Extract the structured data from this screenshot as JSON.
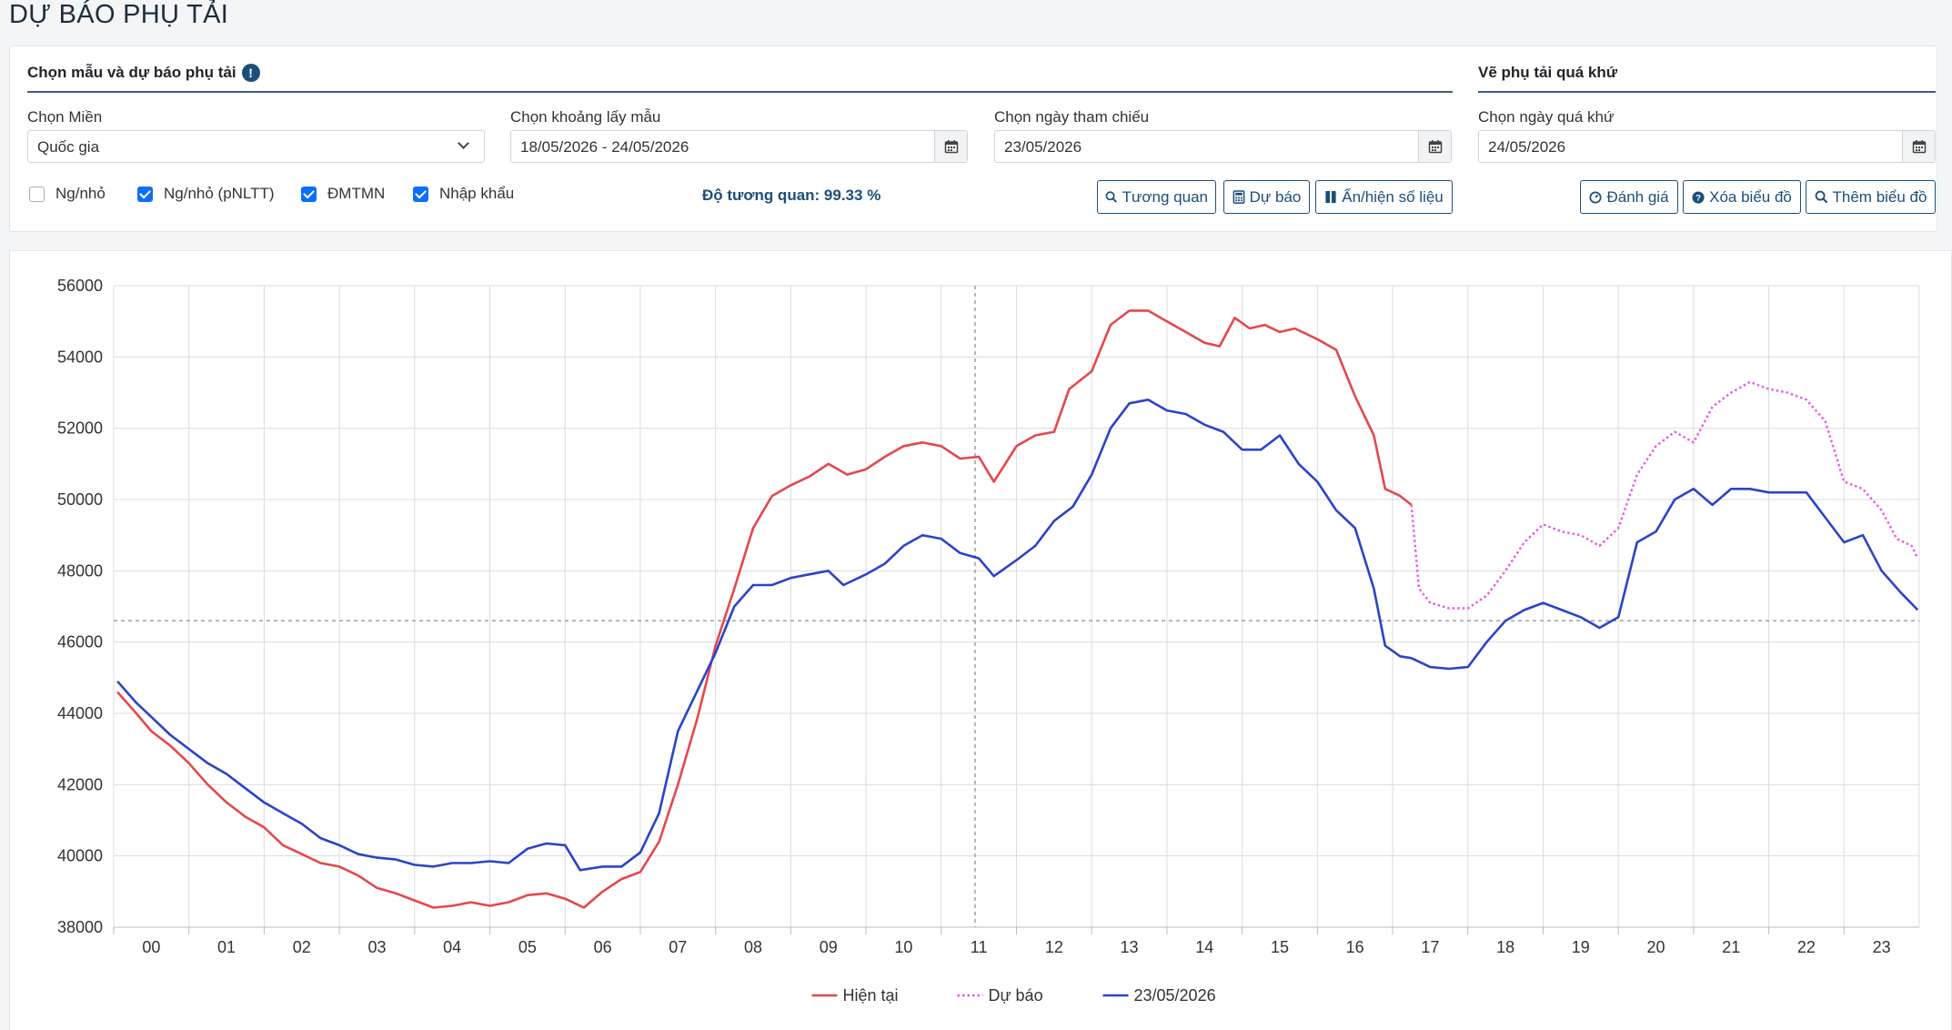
{
  "page": {
    "title": "DỰ BÁO PHỤ TẢI"
  },
  "forecast_section": {
    "title": "Chọn mẫu và dự báo phụ tải",
    "info_icon": "info-circle-icon",
    "region": {
      "label": "Chọn Miền",
      "value": "Quốc gia"
    },
    "sample_range": {
      "label": "Chọn khoảng lấy mẫu",
      "value": "18/05/2026 - 24/05/2026"
    },
    "ref_date": {
      "label": "Chọn ngày tham chiếu",
      "value": "23/05/2026"
    },
    "checkboxes": [
      {
        "label": "Ng/nhỏ",
        "checked": false
      },
      {
        "label": "Ng/nhỏ (pNLTT)",
        "checked": true
      },
      {
        "label": "ĐMTMN",
        "checked": true
      },
      {
        "label": "Nhập khẩu",
        "checked": true
      }
    ],
    "correlation": "Độ tương quan: 99.33 %",
    "buttons": {
      "correlate": "Tương quan",
      "forecast": "Dự báo",
      "toggle_data": "Ẩn/hiện số liệu"
    }
  },
  "history_section": {
    "title": "Vẽ phụ tải quá khứ",
    "past_date": {
      "label": "Chọn ngày quá khứ",
      "value": "24/05/2026"
    },
    "buttons": {
      "evaluate": "Đánh giá",
      "clear_chart": "Xóa biểu đồ",
      "add_chart": "Thêm biểu đồ"
    }
  },
  "chart_data": {
    "type": "line",
    "ylim": [
      38000,
      56000
    ],
    "yticks": [
      38000,
      40000,
      42000,
      44000,
      46000,
      48000,
      50000,
      52000,
      54000,
      56000
    ],
    "ytick_labels": [
      "38000",
      "40000",
      "42000",
      "44000",
      "46000",
      "48000",
      "50000",
      "52000",
      "54000",
      "56000"
    ],
    "xlim": [
      -0.5,
      23.5
    ],
    "xtick_labels": [
      "00",
      "01",
      "02",
      "03",
      "04",
      "05",
      "06",
      "07",
      "08",
      "09",
      "10",
      "11",
      "12",
      "13",
      "14",
      "15",
      "16",
      "17",
      "18",
      "19",
      "20",
      "21",
      "22",
      "23"
    ],
    "crosshair": {
      "x": 10.95,
      "y": 46600
    },
    "legend_position": "bottom",
    "series": [
      {
        "name": "Hiện tại",
        "color": "#e4484b",
        "style": "solid",
        "points": [
          [
            -0.45,
            44600
          ],
          [
            -0.2,
            44000
          ],
          [
            0.0,
            43500
          ],
          [
            0.25,
            43100
          ],
          [
            0.5,
            42600
          ],
          [
            0.75,
            42000
          ],
          [
            1.0,
            41500
          ],
          [
            1.25,
            41100
          ],
          [
            1.5,
            40800
          ],
          [
            1.75,
            40300
          ],
          [
            2.0,
            40050
          ],
          [
            2.25,
            39800
          ],
          [
            2.5,
            39700
          ],
          [
            2.75,
            39450
          ],
          [
            3.0,
            39100
          ],
          [
            3.25,
            38950
          ],
          [
            3.5,
            38750
          ],
          [
            3.75,
            38550
          ],
          [
            4.0,
            38600
          ],
          [
            4.25,
            38700
          ],
          [
            4.5,
            38600
          ],
          [
            4.75,
            38700
          ],
          [
            5.0,
            38900
          ],
          [
            5.25,
            38950
          ],
          [
            5.5,
            38800
          ],
          [
            5.75,
            38550
          ],
          [
            6.0,
            39000
          ],
          [
            6.25,
            39350
          ],
          [
            6.5,
            39550
          ],
          [
            6.75,
            40400
          ],
          [
            7.0,
            42000
          ],
          [
            7.25,
            43800
          ],
          [
            7.5,
            45900
          ],
          [
            7.75,
            47500
          ],
          [
            8.0,
            49200
          ],
          [
            8.25,
            50100
          ],
          [
            8.5,
            50400
          ],
          [
            8.75,
            50650
          ],
          [
            9.0,
            51000
          ],
          [
            9.25,
            50700
          ],
          [
            9.5,
            50850
          ],
          [
            9.75,
            51200
          ],
          [
            10.0,
            51500
          ],
          [
            10.25,
            51600
          ],
          [
            10.5,
            51500
          ],
          [
            10.75,
            51150
          ],
          [
            11.0,
            51200
          ],
          [
            11.2,
            50500
          ],
          [
            11.5,
            51500
          ],
          [
            11.75,
            51800
          ],
          [
            12.0,
            51900
          ],
          [
            12.2,
            53100
          ],
          [
            12.5,
            53600
          ],
          [
            12.75,
            54900
          ],
          [
            13.0,
            55300
          ],
          [
            13.25,
            55300
          ],
          [
            13.5,
            55000
          ],
          [
            13.75,
            54700
          ],
          [
            14.0,
            54400
          ],
          [
            14.2,
            54300
          ],
          [
            14.4,
            55100
          ],
          [
            14.6,
            54800
          ],
          [
            14.8,
            54900
          ],
          [
            15.0,
            54700
          ],
          [
            15.2,
            54800
          ],
          [
            15.5,
            54500
          ],
          [
            15.75,
            54200
          ],
          [
            16.0,
            52900
          ],
          [
            16.25,
            51800
          ],
          [
            16.4,
            50300
          ],
          [
            16.6,
            50100
          ],
          [
            16.75,
            49850
          ]
        ]
      },
      {
        "name": "Dự báo",
        "color": "#e35be0",
        "style": "dotted",
        "points": [
          [
            16.75,
            49850
          ],
          [
            16.85,
            47500
          ],
          [
            17.0,
            47100
          ],
          [
            17.25,
            46950
          ],
          [
            17.5,
            46950
          ],
          [
            17.75,
            47300
          ],
          [
            18.0,
            48000
          ],
          [
            18.25,
            48800
          ],
          [
            18.5,
            49300
          ],
          [
            18.75,
            49100
          ],
          [
            19.0,
            49000
          ],
          [
            19.25,
            48700
          ],
          [
            19.5,
            49200
          ],
          [
            19.75,
            50700
          ],
          [
            20.0,
            51500
          ],
          [
            20.25,
            51900
          ],
          [
            20.5,
            51600
          ],
          [
            20.75,
            52600
          ],
          [
            21.0,
            53000
          ],
          [
            21.25,
            53300
          ],
          [
            21.5,
            53100
          ],
          [
            21.75,
            53000
          ],
          [
            22.0,
            52800
          ],
          [
            22.25,
            52200
          ],
          [
            22.5,
            50500
          ],
          [
            22.75,
            50300
          ],
          [
            23.0,
            49700
          ],
          [
            23.2,
            48900
          ],
          [
            23.4,
            48700
          ],
          [
            23.48,
            48350
          ]
        ]
      },
      {
        "name": "23/05/2026",
        "color": "#2a44c8",
        "style": "solid",
        "points": [
          [
            -0.45,
            44900
          ],
          [
            -0.2,
            44300
          ],
          [
            0.0,
            43900
          ],
          [
            0.25,
            43400
          ],
          [
            0.5,
            43000
          ],
          [
            0.75,
            42600
          ],
          [
            1.0,
            42300
          ],
          [
            1.25,
            41900
          ],
          [
            1.5,
            41500
          ],
          [
            1.75,
            41200
          ],
          [
            2.0,
            40900
          ],
          [
            2.25,
            40500
          ],
          [
            2.5,
            40300
          ],
          [
            2.75,
            40050
          ],
          [
            3.0,
            39950
          ],
          [
            3.25,
            39900
          ],
          [
            3.5,
            39750
          ],
          [
            3.75,
            39700
          ],
          [
            4.0,
            39800
          ],
          [
            4.25,
            39800
          ],
          [
            4.5,
            39850
          ],
          [
            4.75,
            39800
          ],
          [
            5.0,
            40200
          ],
          [
            5.25,
            40350
          ],
          [
            5.5,
            40300
          ],
          [
            5.7,
            39600
          ],
          [
            6.0,
            39700
          ],
          [
            6.25,
            39700
          ],
          [
            6.5,
            40100
          ],
          [
            6.75,
            41200
          ],
          [
            7.0,
            43500
          ],
          [
            7.25,
            44600
          ],
          [
            7.5,
            45700
          ],
          [
            7.75,
            47000
          ],
          [
            8.0,
            47600
          ],
          [
            8.25,
            47600
          ],
          [
            8.5,
            47800
          ],
          [
            8.75,
            47900
          ],
          [
            9.0,
            48000
          ],
          [
            9.2,
            47600
          ],
          [
            9.5,
            47900
          ],
          [
            9.75,
            48200
          ],
          [
            10.0,
            48700
          ],
          [
            10.25,
            49000
          ],
          [
            10.5,
            48900
          ],
          [
            10.75,
            48500
          ],
          [
            11.0,
            48350
          ],
          [
            11.2,
            47850
          ],
          [
            11.5,
            48300
          ],
          [
            11.75,
            48700
          ],
          [
            12.0,
            49400
          ],
          [
            12.25,
            49800
          ],
          [
            12.5,
            50700
          ],
          [
            12.75,
            52000
          ],
          [
            13.0,
            52700
          ],
          [
            13.25,
            52800
          ],
          [
            13.5,
            52500
          ],
          [
            13.75,
            52400
          ],
          [
            14.0,
            52100
          ],
          [
            14.25,
            51900
          ],
          [
            14.5,
            51400
          ],
          [
            14.75,
            51400
          ],
          [
            15.0,
            51800
          ],
          [
            15.25,
            51000
          ],
          [
            15.5,
            50500
          ],
          [
            15.75,
            49700
          ],
          [
            16.0,
            49200
          ],
          [
            16.25,
            47500
          ],
          [
            16.4,
            45900
          ],
          [
            16.6,
            45600
          ],
          [
            16.75,
            45550
          ],
          [
            17.0,
            45300
          ],
          [
            17.25,
            45250
          ],
          [
            17.5,
            45300
          ],
          [
            17.75,
            46000
          ],
          [
            18.0,
            46600
          ],
          [
            18.25,
            46900
          ],
          [
            18.5,
            47100
          ],
          [
            18.75,
            46900
          ],
          [
            19.0,
            46700
          ],
          [
            19.25,
            46400
          ],
          [
            19.5,
            46700
          ],
          [
            19.75,
            48800
          ],
          [
            20.0,
            49100
          ],
          [
            20.25,
            50000
          ],
          [
            20.5,
            50300
          ],
          [
            20.75,
            49850
          ],
          [
            21.0,
            50300
          ],
          [
            21.25,
            50300
          ],
          [
            21.5,
            50200
          ],
          [
            21.75,
            50200
          ],
          [
            22.0,
            50200
          ],
          [
            22.25,
            49500
          ],
          [
            22.5,
            48800
          ],
          [
            22.75,
            49000
          ],
          [
            23.0,
            48000
          ],
          [
            23.25,
            47400
          ],
          [
            23.48,
            46900
          ]
        ]
      }
    ]
  }
}
